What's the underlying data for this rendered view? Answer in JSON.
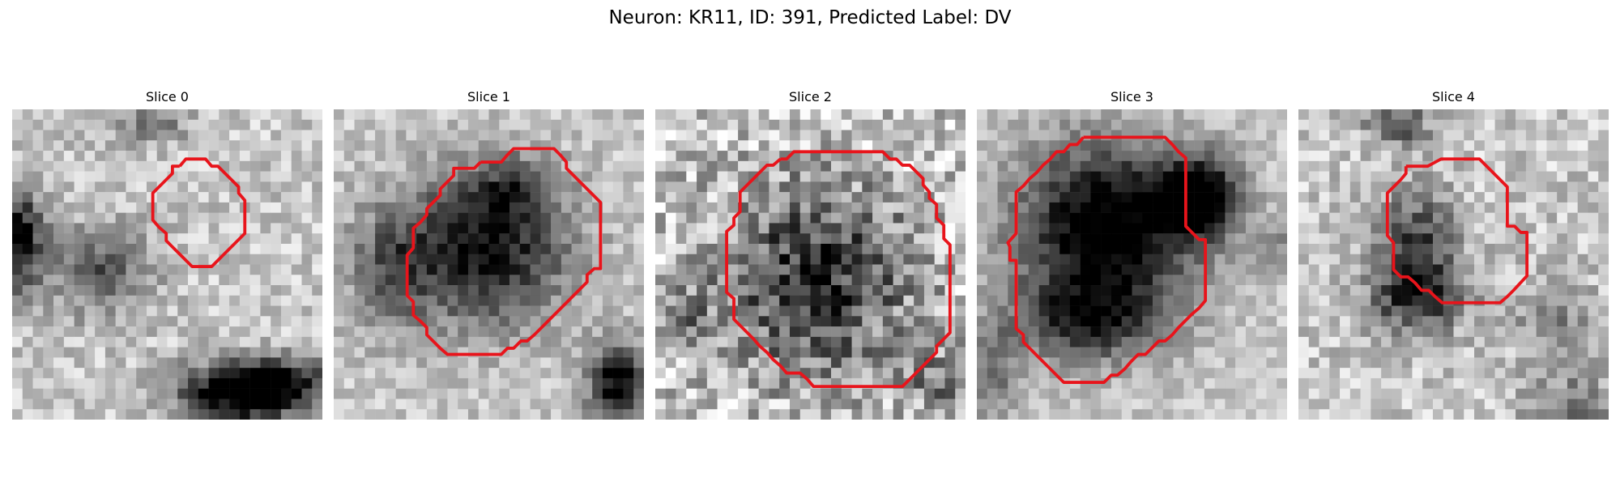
{
  "figure": {
    "title": "Neuron: KR11, ID: 391, Predicted Label: DV"
  },
  "panels": [
    {
      "title": "Slice 0"
    },
    {
      "title": "Slice 1"
    },
    {
      "title": "Slice 2"
    },
    {
      "title": "Slice 3"
    },
    {
      "title": "Slice 4"
    }
  ],
  "colors": {
    "contour": "#e8141b",
    "background": "#ffffff",
    "text": "#000000"
  }
}
